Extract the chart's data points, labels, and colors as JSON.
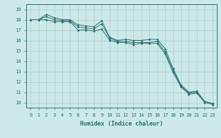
{
  "xlabel": "Humidex (Indice chaleur)",
  "bg_color": "#cce8e8",
  "grid_color": "#aacccc",
  "line_color": "#2a7070",
  "x": [
    0,
    1,
    2,
    3,
    4,
    5,
    6,
    7,
    8,
    9,
    10,
    11,
    12,
    13,
    14,
    15,
    16,
    17,
    18,
    19,
    20,
    21,
    22,
    23
  ],
  "y_max": [
    18.0,
    18.0,
    18.5,
    18.2,
    18.0,
    18.0,
    17.5,
    17.4,
    17.3,
    17.9,
    16.3,
    16.0,
    16.1,
    16.0,
    16.0,
    16.1,
    16.1,
    15.2,
    13.3,
    11.7,
    11.0,
    11.1,
    10.1,
    9.9
  ],
  "y_mid": [
    18.0,
    18.0,
    18.3,
    18.0,
    17.9,
    17.9,
    17.3,
    17.2,
    17.1,
    17.6,
    16.2,
    15.9,
    15.9,
    15.8,
    15.8,
    15.8,
    15.9,
    14.9,
    13.1,
    11.6,
    10.9,
    11.0,
    10.1,
    9.9
  ],
  "y_min": [
    18.0,
    18.0,
    18.0,
    17.8,
    17.8,
    17.8,
    17.0,
    17.0,
    16.9,
    17.1,
    16.0,
    15.8,
    15.8,
    15.6,
    15.7,
    15.7,
    15.7,
    14.7,
    12.9,
    11.5,
    10.8,
    10.9,
    10.0,
    9.8
  ],
  "ylim": [
    9.5,
    19.5
  ],
  "xlim": [
    -0.5,
    23.5
  ],
  "yticks": [
    10,
    11,
    12,
    13,
    14,
    15,
    16,
    17,
    18,
    19
  ],
  "xticks": [
    0,
    1,
    2,
    3,
    4,
    5,
    6,
    7,
    8,
    9,
    10,
    11,
    12,
    13,
    14,
    15,
    16,
    17,
    18,
    19,
    20,
    21,
    22,
    23
  ],
  "tick_fontsize": 5.0,
  "xlabel_fontsize": 6.0,
  "linewidth": 0.7,
  "markersize": 1.8
}
